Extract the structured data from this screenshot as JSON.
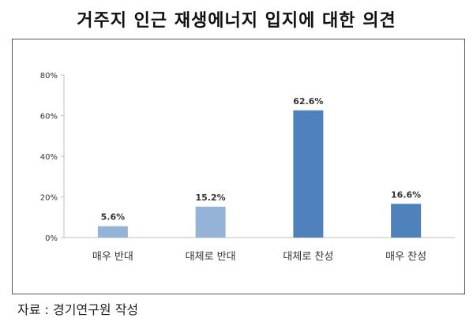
{
  "title": "거주지 인근 재생에너지 입지에 대한 의견",
  "source": "자료 : 경기연구원 작성",
  "colors": {
    "light_bar": "#95B3D7",
    "dark_bar": "#4F81BD",
    "axis": "#bfbfbf",
    "text": "#333333"
  },
  "chart_data": {
    "type": "bar",
    "categories": [
      "매우 반대",
      "대체로 반대",
      "대체로 찬성",
      "매우 찬성"
    ],
    "values": [
      5.6,
      15.2,
      62.6,
      16.6
    ],
    "data_labels": [
      "5.6%",
      "15.2%",
      "62.6%",
      "16.6%"
    ],
    "y_ticks": [
      0,
      20,
      40,
      60,
      80
    ],
    "y_tick_labels": [
      "0%",
      "20%",
      "40%",
      "60%",
      "80%"
    ],
    "ylim": [
      0,
      80
    ],
    "grid": false,
    "legend": "none",
    "bar_color_groups": [
      "light",
      "light",
      "dark",
      "dark"
    ]
  }
}
